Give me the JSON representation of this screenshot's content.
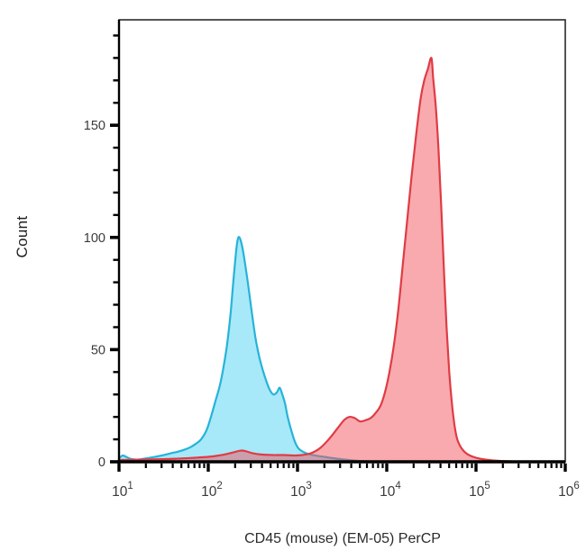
{
  "page": {
    "background": "#ffffff"
  },
  "chart_data": {
    "type": "area",
    "subtype": "flow-cytometry-histogram-overlay",
    "title": "",
    "xlabel": "CD45 (mouse) (EM-05) PerCP",
    "ylabel": "Count",
    "x_scale": "log10",
    "xlim": [
      10,
      1000000
    ],
    "x_range_log10": [
      1,
      6
    ],
    "x_tick_base": "10",
    "x_tick_exponents": [
      "1",
      "2",
      "3",
      "4",
      "5",
      "6"
    ],
    "y_ticks": [
      0,
      50,
      100,
      150
    ],
    "y_minor_step": 10,
    "ylim": [
      0,
      197
    ],
    "grid": false,
    "legend": "none",
    "axis_color": "#000000",
    "frame_color": "#2a2a2a",
    "tick_label_color": "#3a3a3a",
    "series": [
      {
        "name": "blue",
        "stroke": "#26b3d9",
        "fill": "rgba(80,211,242,0.5)",
        "points": [
          [
            1.0,
            1.5
          ],
          [
            1.04,
            2.8
          ],
          [
            1.08,
            2.2
          ],
          [
            1.14,
            1.2
          ],
          [
            1.22,
            1.0
          ],
          [
            1.3,
            1.5
          ],
          [
            1.4,
            2.2
          ],
          [
            1.5,
            3.0
          ],
          [
            1.58,
            3.8
          ],
          [
            1.66,
            4.5
          ],
          [
            1.74,
            5.5
          ],
          [
            1.8,
            6.5
          ],
          [
            1.86,
            8
          ],
          [
            1.92,
            10
          ],
          [
            1.98,
            14
          ],
          [
            2.03,
            20
          ],
          [
            2.08,
            27
          ],
          [
            2.13,
            34
          ],
          [
            2.17,
            42
          ],
          [
            2.21,
            52
          ],
          [
            2.25,
            66
          ],
          [
            2.28,
            80
          ],
          [
            2.31,
            93
          ],
          [
            2.33,
            99
          ],
          [
            2.35,
            100
          ],
          [
            2.38,
            96
          ],
          [
            2.41,
            89
          ],
          [
            2.45,
            78
          ],
          [
            2.49,
            66
          ],
          [
            2.53,
            55
          ],
          [
            2.57,
            47
          ],
          [
            2.61,
            41
          ],
          [
            2.65,
            36
          ],
          [
            2.69,
            32
          ],
          [
            2.73,
            30
          ],
          [
            2.77,
            31
          ],
          [
            2.8,
            33
          ],
          [
            2.83,
            30
          ],
          [
            2.86,
            26
          ],
          [
            2.89,
            20
          ],
          [
            2.93,
            14
          ],
          [
            2.97,
            9
          ],
          [
            3.01,
            6
          ],
          [
            3.06,
            4.5
          ],
          [
            3.12,
            3.5
          ],
          [
            3.2,
            2.8
          ],
          [
            3.3,
            2.2
          ],
          [
            3.4,
            1.6
          ],
          [
            3.52,
            1.0
          ],
          [
            3.65,
            0.5
          ],
          [
            3.8,
            0.2
          ],
          [
            4.0,
            0.1
          ],
          [
            4.2,
            0
          ]
        ]
      },
      {
        "name": "red",
        "stroke": "#e03b44",
        "fill": "rgba(241,85,95,0.5)",
        "points": [
          [
            1.0,
            0.8
          ],
          [
            1.3,
            1.0
          ],
          [
            1.6,
            1.3
          ],
          [
            1.85,
            1.8
          ],
          [
            2.0,
            2.2
          ],
          [
            2.12,
            2.8
          ],
          [
            2.22,
            3.6
          ],
          [
            2.3,
            4.4
          ],
          [
            2.37,
            5.0
          ],
          [
            2.43,
            4.6
          ],
          [
            2.5,
            3.8
          ],
          [
            2.6,
            3.2
          ],
          [
            2.72,
            3.0
          ],
          [
            2.85,
            3.0
          ],
          [
            2.95,
            2.8
          ],
          [
            3.05,
            3.0
          ],
          [
            3.15,
            3.8
          ],
          [
            3.25,
            6
          ],
          [
            3.35,
            10
          ],
          [
            3.45,
            15
          ],
          [
            3.52,
            18.5
          ],
          [
            3.58,
            20
          ],
          [
            3.64,
            19.5
          ],
          [
            3.7,
            18
          ],
          [
            3.76,
            18.5
          ],
          [
            3.82,
            19.5
          ],
          [
            3.88,
            22
          ],
          [
            3.93,
            25
          ],
          [
            3.98,
            31
          ],
          [
            4.03,
            40
          ],
          [
            4.08,
            52
          ],
          [
            4.13,
            68
          ],
          [
            4.18,
            88
          ],
          [
            4.23,
            108
          ],
          [
            4.28,
            128
          ],
          [
            4.33,
            146
          ],
          [
            4.38,
            162
          ],
          [
            4.42,
            170
          ],
          [
            4.46,
            175
          ],
          [
            4.5,
            180
          ],
          [
            4.52,
            171
          ],
          [
            4.55,
            158
          ],
          [
            4.58,
            139
          ],
          [
            4.61,
            114
          ],
          [
            4.64,
            86
          ],
          [
            4.67,
            60
          ],
          [
            4.7,
            40
          ],
          [
            4.73,
            26
          ],
          [
            4.76,
            16
          ],
          [
            4.79,
            10
          ],
          [
            4.83,
            6.5
          ],
          [
            4.87,
            4.5
          ],
          [
            4.92,
            3.0
          ],
          [
            5.0,
            1.8
          ],
          [
            5.1,
            1.0
          ],
          [
            5.22,
            0.5
          ],
          [
            5.38,
            0.2
          ],
          [
            5.55,
            0
          ]
        ]
      }
    ]
  }
}
